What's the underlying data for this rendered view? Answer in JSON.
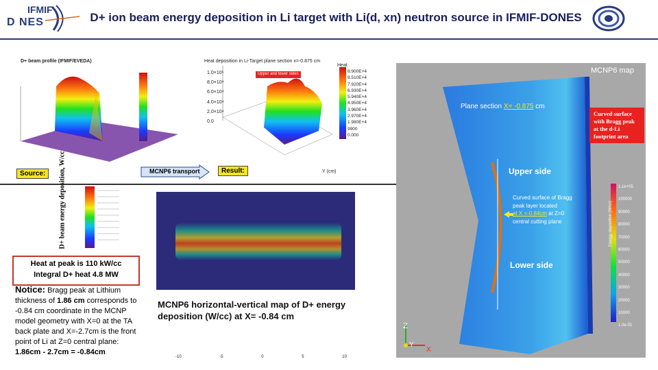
{
  "header": {
    "logo_top": "IFMIF",
    "logo_bottom": "D  NES",
    "title": "D+ ion beam energy deposition in Li target with Li(d, xn) neutron source in IFMIF-DONES"
  },
  "top_left": {
    "profile_title": "D+ beam profile (IFMIF/EVEDA)",
    "heat_title": "Heat deposition in Li-Target plane section x=-0.875 cm",
    "heat_axis_label": "Heat",
    "upper_lower_sides": "Upper and lower sides",
    "source_label": "Source:",
    "transport_label": "MCNP6 transport",
    "result_label": "Result:",
    "heat_legend": [
      "8.900E+4",
      "8.510E+4",
      "7.920E+4",
      "6.930E+4",
      "5.940E+4",
      "4.950E+4",
      "3.960E+4",
      "2.970E+4",
      "1.980E+4",
      "9900",
      "0.000"
    ],
    "heat_yticks": [
      "1.0×10⁵",
      "8.0×10⁴",
      "6.0×10⁴",
      "4.0×10⁴",
      "2.0×10⁴",
      "0.0"
    ],
    "y_label": "Y (cm)"
  },
  "bottom_left": {
    "ylabel": "D+ beam energy deposition, W/cc",
    "heat_peak": "Heat at peak is 110 kW/cc",
    "integral_heat": "Integral D+ heat 4.8 MW",
    "notice_label": "Notice:",
    "notice_text_1": " Bragg peak at Lithium thickness of ",
    "notice_bold_1": "1.86 cm",
    "notice_text_2": " corresponds to -0.84 cm coordinate in the MCNP model geometry with X=0 at the TA back plate and X=-2.7cm is the front point of Li at Z=0 central plane: ",
    "notice_bold_2": "1.86cm - 2.7cm = -0.84cm",
    "map_caption": "MCNP6 horizontal-vertical map of D+ energy deposition (W/cc) at X= -0.84 cm",
    "xticks": [
      "-10",
      "-5",
      "0",
      "5",
      "10"
    ]
  },
  "right_panel": {
    "label": "MCNP6 map",
    "plane_section_prefix": "Plane section ",
    "plane_section_value": "X= -0.875",
    "plane_section_unit": " cm",
    "curved_callout": "Curved surface with Bragg peak at the d-Li footprint area",
    "upper_side": "Upper side",
    "lower_side": "Lower side",
    "bragg_note_1": "Curved surface of Bragg peak layer located",
    "bragg_note_2": "at X =-0.84cm",
    "bragg_note_3": " at Z=0",
    "bragg_note_4": "central cutting plane",
    "colorbar_ticks": [
      "1.1e+05",
      "100000",
      "90000",
      "80000",
      "70000",
      "60000",
      "50000",
      "40000",
      "30000",
      "20000",
      "10000",
      "1.0e-01"
    ],
    "colorbar_label": "Energy deposition (W/cc)",
    "axis_z": "Z",
    "axis_y": "Y",
    "axis_x": "X"
  },
  "colors": {
    "title": "#1a1f5a",
    "header_rule": "#2a3a7a",
    "callout_red": "#e8231f",
    "highlight_yellow": "#f7e71d",
    "panel_gray": "#a8a8a8",
    "map_blue": "#2b2b7a"
  }
}
